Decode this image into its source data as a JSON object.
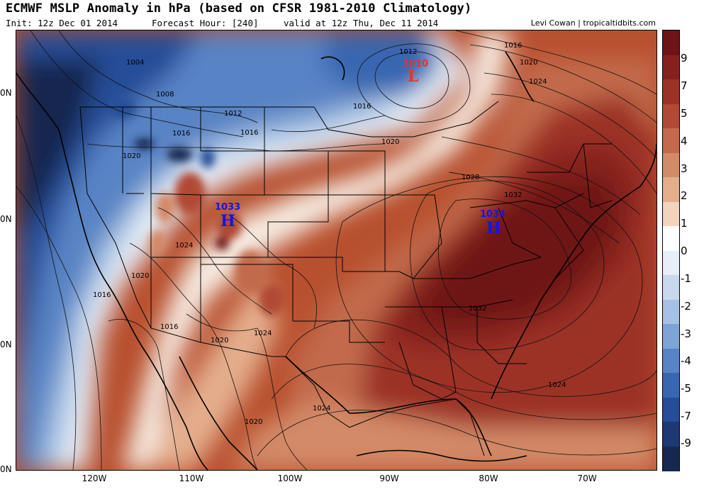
{
  "header": {
    "title": "ECMWF MSLP Anomaly in hPa (based on CFSR 1981-2010 Climatology)",
    "init": "Init: 12z Dec 01 2014",
    "forecast_hour": "Forecast Hour: [240]",
    "valid": "valid at 12z Thu, Dec 11 2014",
    "credit": "Levi Cowan | tropicaltidbits.com"
  },
  "colorbar": {
    "labels": [
      "9",
      "7",
      "5",
      "4",
      "3",
      "2",
      "1",
      "0",
      "-1",
      "-2",
      "-3",
      "-4",
      "-5",
      "-7",
      "-9"
    ],
    "colors": [
      "#6e1418",
      "#85201f",
      "#9c3226",
      "#b14a34",
      "#c26a4b",
      "#d38a67",
      "#e4ad8c",
      "#f2d3bd",
      "#ffffff",
      "#e6eef8",
      "#c8d9ee",
      "#a6c1e3",
      "#7ea3d5",
      "#5883c4",
      "#3966b0",
      "#254d98",
      "#1d3874",
      "#17284f"
    ]
  },
  "axes": {
    "lat_labels": [
      "0N",
      "0N",
      "0N",
      "0N"
    ],
    "lon_labels": [
      "120W",
      "110W",
      "100W",
      "90W",
      "80W",
      "70W"
    ]
  },
  "map": {
    "isobar_labels": [
      "1004",
      "1008",
      "1012",
      "1016",
      "1016",
      "1012",
      "1016",
      "1020",
      "1016",
      "1020",
      "1028",
      "1032",
      "1024",
      "1020",
      "1016",
      "1016",
      "1020",
      "1024",
      "1020",
      "1024",
      "1032",
      "1024",
      "1016",
      "1020",
      "1024"
    ],
    "centers": [
      {
        "type": "L",
        "value": "1010",
        "color": "#e8332a"
      },
      {
        "type": "H",
        "value": "1033",
        "color": "#1414e6"
      },
      {
        "type": "H",
        "value": "1034",
        "color": "#1414e6"
      }
    ]
  }
}
